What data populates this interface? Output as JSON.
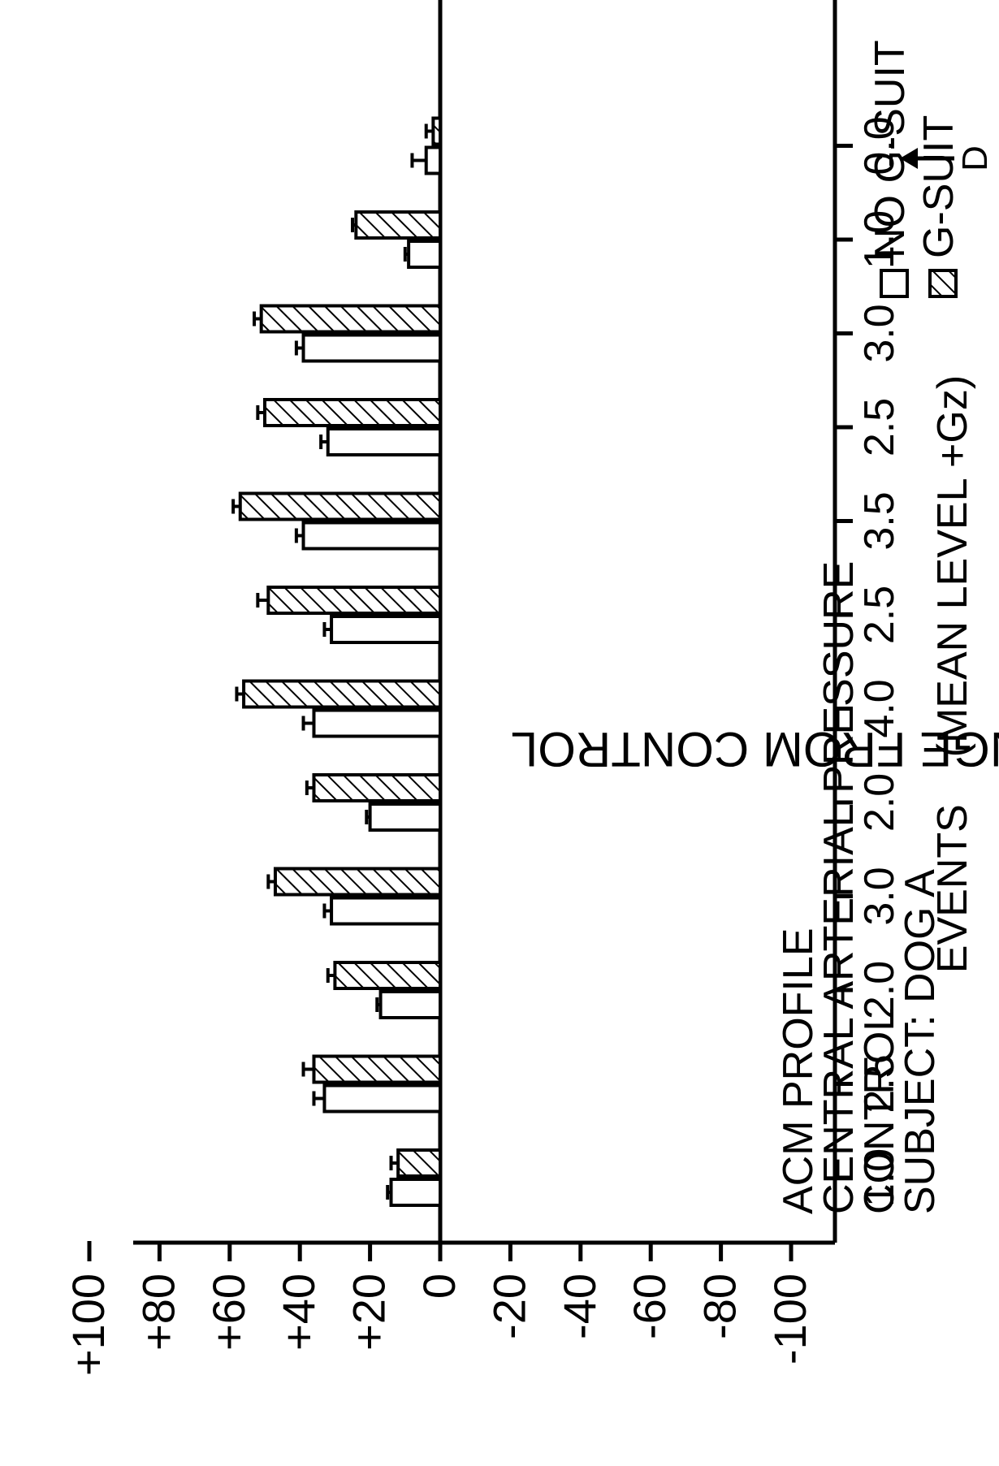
{
  "chart_data": {
    "type": "bar",
    "title_lines": [
      "ACM PROFILE",
      "CENTRAL ARTERIAL PRESSURE",
      "CONTROL",
      "SUBJECT: DOG A"
    ],
    "ylabel": "PERCENT CHANGE FROM CONTROL",
    "xlabel": "EVENTS    (MEAN LEVEL +Gz)",
    "ylim": [
      -100,
      100
    ],
    "yticks": [
      "+100",
      "+80",
      "+60",
      "+40",
      "+20",
      "0",
      "-20",
      "-40",
      "-60",
      "-80",
      "-100"
    ],
    "categories": [
      "1.0",
      "2.5",
      "2.0",
      "3.0",
      "2.0",
      "4.0",
      "2.5",
      "3.5",
      "2.5",
      "3.0",
      "1.0",
      "0.0"
    ],
    "series": [
      {
        "name": "NO G-SUIT",
        "pattern": "open",
        "values": [
          14,
          33,
          17,
          31,
          20,
          36,
          31,
          39,
          32,
          39,
          9,
          4
        ],
        "errors": [
          1,
          3,
          1,
          2,
          1,
          3,
          2,
          2,
          2,
          2,
          1,
          4
        ]
      },
      {
        "name": "G-SUIT",
        "pattern": "hatched",
        "values": [
          12,
          36,
          30,
          47,
          36,
          56,
          49,
          57,
          50,
          51,
          24,
          2
        ],
        "errors": [
          2,
          3,
          2,
          2,
          2,
          2,
          3,
          2,
          2,
          2,
          1,
          2
        ]
      }
    ],
    "arrow_label": "D",
    "grid": false,
    "legend_position": "top-right"
  }
}
